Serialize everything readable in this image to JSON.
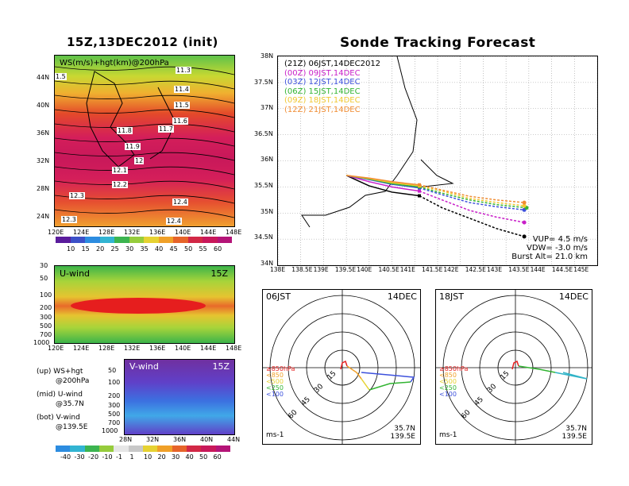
{
  "left": {
    "title": "15Z,13DEC2012 (init)",
    "map": {
      "label": "WS(m/s)+hgt(km)@200hPa",
      "contour_labels": [
        "11.3",
        "11.4",
        "11.5",
        "11.6",
        "11.7",
        "11.8",
        "11.9",
        "12",
        "12.1",
        "12.2",
        "12.3",
        "12.4",
        "12.3",
        "12.4",
        "1.5"
      ],
      "y_ticks": [
        "44N",
        "40N",
        "36N",
        "32N",
        "28N",
        "24N"
      ],
      "x_ticks": [
        "120E",
        "124E",
        "128E",
        "132E",
        "136E",
        "140E",
        "144E",
        "148E"
      ],
      "colorbar": [
        "10",
        "15",
        "20",
        "25",
        "30",
        "35",
        "40",
        "45",
        "50",
        "55",
        "60"
      ],
      "colorbar_colors": [
        "#5a1c9c",
        "#3c50c8",
        "#2c8ce0",
        "#32b4d2",
        "#3cb450",
        "#96cc3c",
        "#e6d232",
        "#f0a028",
        "#e6642a",
        "#d22846",
        "#c8185a",
        "#b41478"
      ]
    },
    "uwind": {
      "label": "U-wind",
      "time": "15Z",
      "y_ticks": [
        "30",
        "50",
        "100",
        "200",
        "300",
        "500",
        "700",
        "1000"
      ],
      "x_ticks": [
        "120E",
        "124E",
        "128E",
        "132E",
        "136E",
        "140E",
        "144E",
        "148E"
      ]
    },
    "vwind": {
      "label": "V-wind",
      "time": "15Z",
      "y_ticks": [
        "50",
        "100",
        "200",
        "300",
        "500",
        "700",
        "1000"
      ],
      "x_ticks": [
        "28N",
        "32N",
        "36N",
        "40N",
        "44N"
      ],
      "colorbar": [
        "-40",
        "-30",
        "-20",
        "-10",
        "-1",
        "1",
        "10",
        "20",
        "30",
        "40",
        "50",
        "60"
      ],
      "colorbar_colors": [
        "#2c8ce0",
        "#32b4d2",
        "#3cb450",
        "#96cc3c",
        "#e6e6e6",
        "#c8c8c8",
        "#e6d232",
        "#f0a028",
        "#e6642a",
        "#d22846",
        "#c8185a",
        "#b41478"
      ]
    },
    "notes": [
      {
        "a": "(up) WS+hgt",
        "b": "@200hPa"
      },
      {
        "a": "(mid) U-wind",
        "b": "@35.7N"
      },
      {
        "a": "(bot) V-wind",
        "b": "@139.5E"
      }
    ]
  },
  "right": {
    "title": "Sonde Tracking Forecast",
    "y_ticks": [
      "38N",
      "37.5N",
      "37N",
      "36.5N",
      "36N",
      "35.5N",
      "35N",
      "34.5N",
      "34N"
    ],
    "x_ticks": [
      "138E",
      "138.5E",
      "139E",
      "139.5E",
      "140E",
      "140.5E",
      "141E",
      "141.5E",
      "142E",
      "142.5E",
      "143E",
      "143.5E",
      "144E",
      "144.5E",
      "145E"
    ],
    "legend": [
      {
        "text": "(21Z)  06JST,14DEC2012",
        "color": "#000000"
      },
      {
        "text": "(00Z)  09JST,14DEC",
        "color": "#c81ec8"
      },
      {
        "text": "(03Z)  12JST,14DEC",
        "color": "#3c50dc"
      },
      {
        "text": "(06Z)  15JST,14DEC",
        "color": "#32b432"
      },
      {
        "text": "(09Z)  18JST,14DEC",
        "color": "#f0c832"
      },
      {
        "text": "(12Z)  21JST,14DEC",
        "color": "#f08c32"
      }
    ],
    "info": [
      "VUP=  4.5 m/s",
      "VDW= -3.0 m/s",
      "Burst Alt= 21.0 km"
    ]
  },
  "hodo": [
    {
      "left": "06JST",
      "right": "14DEC",
      "bl": "ms-1",
      "br1": "35.7N",
      "br2": "139.5E"
    },
    {
      "left": "18JST",
      "right": "14DEC",
      "bl": "ms-1",
      "br1": "35.7N",
      "br2": "139.5E"
    }
  ],
  "hodo_levels": [
    {
      "text": "≥850hPa",
      "color": "#e61e1e"
    },
    {
      "text": "<850",
      "color": "#f0a028"
    },
    {
      "text": "<500",
      "color": "#e6d232"
    },
    {
      "text": "<250",
      "color": "#32b432"
    },
    {
      "text": "<100",
      "color": "#3c50dc"
    }
  ],
  "ring_labels": [
    "15",
    "30",
    "45",
    "60"
  ],
  "chart_data": {
    "type": "line",
    "title": "Sonde Tracking Forecast",
    "xlim": [
      138,
      145
    ],
    "ylim": [
      34,
      38
    ],
    "series": [
      {
        "name": "(21Z) 06JST,14DEC2012",
        "color": "#000000",
        "x": [
          139.5,
          140.0,
          140.5,
          141.1,
          141.6,
          142.2,
          142.8,
          143.4
        ],
        "y": [
          35.72,
          35.52,
          35.4,
          35.33,
          35.1,
          34.9,
          34.7,
          34.55
        ]
      },
      {
        "name": "(00Z) 09JST,14DEC",
        "color": "#c81ec8",
        "x": [
          139.5,
          140.0,
          140.5,
          141.1,
          141.6,
          142.2,
          142.8,
          143.4
        ],
        "y": [
          35.72,
          35.6,
          35.5,
          35.42,
          35.25,
          35.05,
          34.92,
          34.82
        ]
      },
      {
        "name": "(03Z) 12JST,14DEC",
        "color": "#3c50dc",
        "x": [
          139.5,
          140.0,
          140.5,
          141.1,
          141.6,
          142.2,
          142.8,
          143.4
        ],
        "y": [
          35.72,
          35.64,
          35.55,
          35.48,
          35.35,
          35.2,
          35.12,
          35.06
        ]
      },
      {
        "name": "(06Z) 15JST,14DEC",
        "color": "#32b432",
        "x": [
          139.5,
          140.0,
          140.5,
          141.1,
          141.6,
          142.2,
          142.8,
          143.45
        ],
        "y": [
          35.72,
          35.65,
          35.56,
          35.5,
          35.38,
          35.25,
          35.16,
          35.1
        ]
      },
      {
        "name": "(09Z) 18JST,14DEC",
        "color": "#f0c832",
        "x": [
          139.5,
          140.0,
          140.5,
          141.1,
          141.6,
          142.2,
          142.8,
          143.4
        ],
        "y": [
          35.72,
          35.66,
          35.58,
          35.52,
          35.42,
          35.28,
          35.2,
          35.14
        ]
      },
      {
        "name": "(12Z) 21JST,14DEC",
        "color": "#f08c32",
        "x": [
          139.5,
          140.0,
          140.5,
          141.1,
          141.6,
          142.2,
          142.8,
          143.4
        ],
        "y": [
          35.72,
          35.67,
          35.6,
          35.54,
          35.44,
          35.32,
          35.25,
          35.2
        ]
      }
    ]
  }
}
